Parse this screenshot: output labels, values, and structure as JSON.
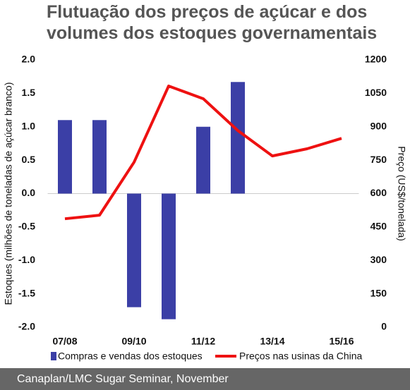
{
  "chart_data": {
    "type": "bar_line",
    "title": "Flutuação dos preços de açúcar e dos volumes dos estoques governamentais",
    "y_label": "Estoques (milhões de toneladas de açúcar branco)",
    "y2_label": "Preço (US$/tonelada)",
    "categories": [
      "07/08",
      null,
      "09/10",
      null,
      "11/12",
      null,
      "13/14",
      null,
      "15/16"
    ],
    "series": [
      {
        "name": "Compras e vendas dos estoques",
        "type": "bar",
        "color": "#3b3fa6",
        "values": [
          1.1,
          1.1,
          -1.7,
          -1.88,
          1.0,
          1.67,
          null,
          null,
          null
        ]
      },
      {
        "name": "Preços nas usinas da China",
        "type": "line",
        "color": "#ee1111",
        "axis": "y2",
        "values": [
          487,
          503,
          741,
          1083,
          1026,
          883,
          769,
          801,
          848
        ]
      }
    ],
    "ylim": [
      -2,
      2
    ],
    "yticks": [
      {
        "value": 2,
        "label": "2.0"
      },
      1.5,
      {
        "value": 1,
        "label": "1.0"
      },
      0.5,
      {
        "value": 0,
        "label": "0.0"
      },
      -0.5,
      {
        "value": -1,
        "label": "-1.0"
      },
      -1.5,
      {
        "value": -2,
        "label": "-2.0"
      }
    ],
    "y2lim": [
      0,
      1200
    ],
    "y2ticks": [
      0,
      150,
      300,
      450,
      600,
      750,
      900,
      1050,
      1200
    ],
    "source": "Canaplan/LMC Sugar Seminar, November"
  }
}
